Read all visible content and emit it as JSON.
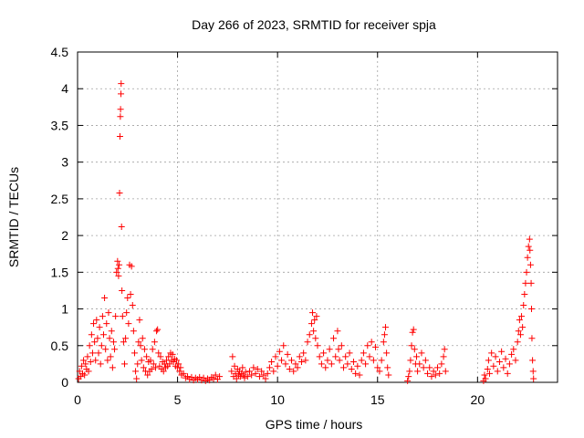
{
  "chart_data": {
    "type": "scatter",
    "title": "Day 266 of 2023, SRMTID for receiver spja",
    "xlabel": "GPS time / hours",
    "ylabel": "SRMTID / TECUs",
    "xlim": [
      0,
      24
    ],
    "ylim": [
      0,
      4.5
    ],
    "xticks": [
      0,
      5,
      10,
      15,
      20
    ],
    "xtick_labels": [
      "0",
      "5",
      "10",
      "15",
      "20"
    ],
    "yticks": [
      0,
      0.5,
      1,
      1.5,
      2,
      2.5,
      3,
      3.5,
      4,
      4.5
    ],
    "ytick_labels": [
      "0",
      "0.5",
      "1",
      "1.5",
      "2",
      "2.5",
      "3",
      "3.5",
      "4",
      "4.5"
    ],
    "grid": true,
    "marker": "+",
    "color": "#ff0000",
    "series": [
      {
        "name": "SRMTID",
        "points": [
          [
            0.05,
            0.05
          ],
          [
            0.1,
            0.15
          ],
          [
            0.15,
            0.08
          ],
          [
            0.2,
            0.22
          ],
          [
            0.25,
            0.12
          ],
          [
            0.3,
            0.3
          ],
          [
            0.35,
            0.1
          ],
          [
            0.4,
            0.25
          ],
          [
            0.45,
            0.18
          ],
          [
            0.5,
            0.35
          ],
          [
            0.55,
            0.15
          ],
          [
            0.6,
            0.5
          ],
          [
            0.65,
            0.28
          ],
          [
            0.7,
            0.65
          ],
          [
            0.75,
            0.4
          ],
          [
            0.8,
            0.8
          ],
          [
            0.85,
            0.55
          ],
          [
            0.9,
            0.3
          ],
          [
            0.95,
            0.85
          ],
          [
            1.0,
            0.6
          ],
          [
            1.05,
            0.4
          ],
          [
            1.1,
            0.75
          ],
          [
            1.15,
            0.25
          ],
          [
            1.2,
            0.5
          ],
          [
            1.25,
            0.9
          ],
          [
            1.3,
            0.65
          ],
          [
            1.35,
            1.15
          ],
          [
            1.4,
            0.45
          ],
          [
            1.45,
            0.8
          ],
          [
            1.5,
            0.3
          ],
          [
            1.55,
            0.95
          ],
          [
            1.6,
            0.6
          ],
          [
            1.65,
            0.35
          ],
          [
            1.7,
            0.7
          ],
          [
            1.75,
            0.2
          ],
          [
            1.8,
            0.55
          ],
          [
            1.85,
            0.45
          ],
          [
            1.9,
            0.9
          ],
          [
            1.95,
            1.5
          ],
          [
            2.0,
            1.65
          ],
          [
            2.02,
            1.55
          ],
          [
            2.05,
            1.45
          ],
          [
            2.08,
            1.6
          ],
          [
            2.1,
            2.58
          ],
          [
            2.12,
            3.35
          ],
          [
            2.14,
            3.62
          ],
          [
            2.15,
            3.72
          ],
          [
            2.17,
            3.93
          ],
          [
            2.18,
            4.07
          ],
          [
            2.2,
            2.12
          ],
          [
            2.22,
            1.25
          ],
          [
            2.25,
            0.9
          ],
          [
            2.3,
            0.55
          ],
          [
            2.35,
            0.25
          ],
          [
            2.4,
            0.6
          ],
          [
            2.45,
            0.95
          ],
          [
            2.5,
            1.15
          ],
          [
            2.55,
            0.8
          ],
          [
            2.6,
            1.6
          ],
          [
            2.65,
            1.2
          ],
          [
            2.7,
            1.58
          ],
          [
            2.75,
            1.05
          ],
          [
            2.8,
            0.7
          ],
          [
            2.85,
            0.4
          ],
          [
            2.9,
            0.15
          ],
          [
            2.95,
            0.05
          ],
          [
            3.0,
            0.25
          ],
          [
            3.05,
            0.55
          ],
          [
            3.1,
            0.85
          ],
          [
            3.15,
            0.5
          ],
          [
            3.2,
            0.3
          ],
          [
            3.25,
            0.6
          ],
          [
            3.3,
            0.2
          ],
          [
            3.35,
            0.45
          ],
          [
            3.4,
            0.15
          ],
          [
            3.45,
            0.35
          ],
          [
            3.5,
            0.1
          ],
          [
            3.55,
            0.28
          ],
          [
            3.6,
            0.15
          ],
          [
            3.65,
            0.3
          ],
          [
            3.7,
            0.18
          ],
          [
            3.75,
            0.45
          ],
          [
            3.8,
            0.25
          ],
          [
            3.85,
            0.55
          ],
          [
            3.9,
            0.2
          ],
          [
            3.95,
            0.7
          ],
          [
            4.0,
            0.72
          ],
          [
            4.05,
            0.4
          ],
          [
            4.1,
            0.22
          ],
          [
            4.15,
            0.35
          ],
          [
            4.2,
            0.18
          ],
          [
            4.25,
            0.28
          ],
          [
            4.3,
            0.15
          ],
          [
            4.35,
            0.25
          ],
          [
            4.4,
            0.2
          ],
          [
            4.45,
            0.3
          ],
          [
            4.5,
            0.22
          ],
          [
            4.55,
            0.35
          ],
          [
            4.6,
            0.25
          ],
          [
            4.65,
            0.4
          ],
          [
            4.7,
            0.3
          ],
          [
            4.75,
            0.38
          ],
          [
            4.8,
            0.28
          ],
          [
            4.85,
            0.32
          ],
          [
            4.9,
            0.22
          ],
          [
            4.95,
            0.3
          ],
          [
            5.0,
            0.2
          ],
          [
            5.05,
            0.25
          ],
          [
            5.1,
            0.15
          ],
          [
            5.15,
            0.2
          ],
          [
            5.2,
            0.1
          ],
          [
            5.3,
            0.12
          ],
          [
            5.4,
            0.06
          ],
          [
            5.5,
            0.08
          ],
          [
            5.6,
            0.04
          ],
          [
            5.7,
            0.07
          ],
          [
            5.8,
            0.03
          ],
          [
            5.9,
            0.06
          ],
          [
            6.0,
            0.04
          ],
          [
            6.1,
            0.07
          ],
          [
            6.2,
            0.03
          ],
          [
            6.3,
            0.06
          ],
          [
            6.4,
            0.02
          ],
          [
            6.5,
            0.05
          ],
          [
            6.6,
            0.03
          ],
          [
            6.7,
            0.07
          ],
          [
            6.8,
            0.05
          ],
          [
            6.9,
            0.1
          ],
          [
            7.0,
            0.04
          ],
          [
            7.1,
            0.08
          ],
          [
            7.7,
            0.15
          ],
          [
            7.75,
            0.35
          ],
          [
            7.8,
            0.08
          ],
          [
            7.85,
            0.22
          ],
          [
            7.9,
            0.12
          ],
          [
            7.95,
            0.05
          ],
          [
            8.0,
            0.18
          ],
          [
            8.05,
            0.1
          ],
          [
            8.1,
            0.15
          ],
          [
            8.15,
            0.08
          ],
          [
            8.2,
            0.12
          ],
          [
            8.25,
            0.2
          ],
          [
            8.3,
            0.1
          ],
          [
            8.35,
            0.06
          ],
          [
            8.4,
            0.14
          ],
          [
            8.5,
            0.08
          ],
          [
            8.6,
            0.15
          ],
          [
            8.7,
            0.1
          ],
          [
            8.8,
            0.2
          ],
          [
            8.9,
            0.12
          ],
          [
            9.0,
            0.18
          ],
          [
            9.1,
            0.08
          ],
          [
            9.2,
            0.15
          ],
          [
            9.3,
            0.1
          ],
          [
            9.4,
            0.05
          ],
          [
            9.5,
            0.12
          ],
          [
            9.6,
            0.2
          ],
          [
            9.7,
            0.28
          ],
          [
            9.8,
            0.15
          ],
          [
            9.9,
            0.35
          ],
          [
            10.0,
            0.22
          ],
          [
            10.1,
            0.42
          ],
          [
            10.2,
            0.3
          ],
          [
            10.3,
            0.5
          ],
          [
            10.4,
            0.25
          ],
          [
            10.5,
            0.38
          ],
          [
            10.6,
            0.18
          ],
          [
            10.7,
            0.3
          ],
          [
            10.8,
            0.15
          ],
          [
            10.9,
            0.25
          ],
          [
            11.0,
            0.2
          ],
          [
            11.1,
            0.35
          ],
          [
            11.2,
            0.28
          ],
          [
            11.3,
            0.4
          ],
          [
            11.4,
            0.3
          ],
          [
            11.5,
            0.55
          ],
          [
            11.6,
            0.65
          ],
          [
            11.7,
            0.8
          ],
          [
            11.75,
            0.95
          ],
          [
            11.8,
            0.7
          ],
          [
            11.85,
            0.85
          ],
          [
            11.9,
            0.6
          ],
          [
            11.95,
            0.9
          ],
          [
            12.0,
            0.5
          ],
          [
            12.1,
            0.35
          ],
          [
            12.2,
            0.25
          ],
          [
            12.3,
            0.4
          ],
          [
            12.4,
            0.2
          ],
          [
            12.5,
            0.3
          ],
          [
            12.6,
            0.45
          ],
          [
            12.7,
            0.25
          ],
          [
            12.8,
            0.6
          ],
          [
            12.9,
            0.35
          ],
          [
            13.0,
            0.7
          ],
          [
            13.05,
            0.45
          ],
          [
            13.1,
            0.3
          ],
          [
            13.2,
            0.5
          ],
          [
            13.3,
            0.2
          ],
          [
            13.4,
            0.35
          ],
          [
            13.5,
            0.25
          ],
          [
            13.6,
            0.4
          ],
          [
            13.7,
            0.18
          ],
          [
            13.8,
            0.28
          ],
          [
            13.9,
            0.12
          ],
          [
            14.0,
            0.22
          ],
          [
            14.1,
            0.1
          ],
          [
            14.2,
            0.3
          ],
          [
            14.3,
            0.4
          ],
          [
            14.4,
            0.25
          ],
          [
            14.5,
            0.5
          ],
          [
            14.6,
            0.35
          ],
          [
            14.7,
            0.55
          ],
          [
            14.8,
            0.3
          ],
          [
            14.9,
            0.48
          ],
          [
            15.0,
            0.2
          ],
          [
            15.1,
            0.15
          ],
          [
            15.2,
            0.3
          ],
          [
            15.3,
            0.55
          ],
          [
            15.35,
            0.65
          ],
          [
            15.4,
            0.75
          ],
          [
            15.45,
            0.4
          ],
          [
            15.5,
            0.2
          ],
          [
            15.55,
            0.1
          ],
          [
            16.5,
            0.02
          ],
          [
            16.55,
            0.08
          ],
          [
            16.6,
            0.15
          ],
          [
            16.65,
            0.3
          ],
          [
            16.7,
            0.5
          ],
          [
            16.75,
            0.68
          ],
          [
            16.8,
            0.72
          ],
          [
            16.85,
            0.45
          ],
          [
            16.9,
            0.25
          ],
          [
            16.95,
            0.35
          ],
          [
            17.0,
            0.15
          ],
          [
            17.1,
            0.25
          ],
          [
            17.2,
            0.4
          ],
          [
            17.3,
            0.2
          ],
          [
            17.4,
            0.3
          ],
          [
            17.5,
            0.12
          ],
          [
            17.6,
            0.2
          ],
          [
            17.7,
            0.08
          ],
          [
            17.8,
            0.15
          ],
          [
            17.9,
            0.1
          ],
          [
            18.0,
            0.2
          ],
          [
            18.1,
            0.12
          ],
          [
            18.2,
            0.25
          ],
          [
            18.3,
            0.35
          ],
          [
            18.35,
            0.45
          ],
          [
            18.4,
            0.15
          ],
          [
            20.3,
            0.02
          ],
          [
            20.35,
            0.1
          ],
          [
            20.4,
            0.05
          ],
          [
            20.5,
            0.18
          ],
          [
            20.55,
            0.3
          ],
          [
            20.6,
            0.12
          ],
          [
            20.7,
            0.4
          ],
          [
            20.8,
            0.22
          ],
          [
            20.9,
            0.35
          ],
          [
            21.0,
            0.15
          ],
          [
            21.1,
            0.28
          ],
          [
            21.2,
            0.42
          ],
          [
            21.3,
            0.2
          ],
          [
            21.4,
            0.32
          ],
          [
            21.5,
            0.12
          ],
          [
            21.6,
            0.25
          ],
          [
            21.7,
            0.38
          ],
          [
            21.8,
            0.45
          ],
          [
            21.9,
            0.3
          ],
          [
            22.0,
            0.55
          ],
          [
            22.05,
            0.7
          ],
          [
            22.1,
            0.85
          ],
          [
            22.15,
            0.65
          ],
          [
            22.2,
            0.9
          ],
          [
            22.25,
            0.75
          ],
          [
            22.3,
            1.05
          ],
          [
            22.35,
            1.2
          ],
          [
            22.4,
            1.35
          ],
          [
            22.45,
            1.5
          ],
          [
            22.5,
            1.7
          ],
          [
            22.55,
            1.85
          ],
          [
            22.6,
            1.95
          ],
          [
            22.62,
            1.8
          ],
          [
            22.65,
            1.6
          ],
          [
            22.68,
            1.35
          ],
          [
            22.7,
            1.0
          ],
          [
            22.72,
            0.6
          ],
          [
            22.75,
            0.3
          ],
          [
            22.78,
            0.15
          ],
          [
            22.8,
            0.05
          ]
        ]
      }
    ]
  }
}
